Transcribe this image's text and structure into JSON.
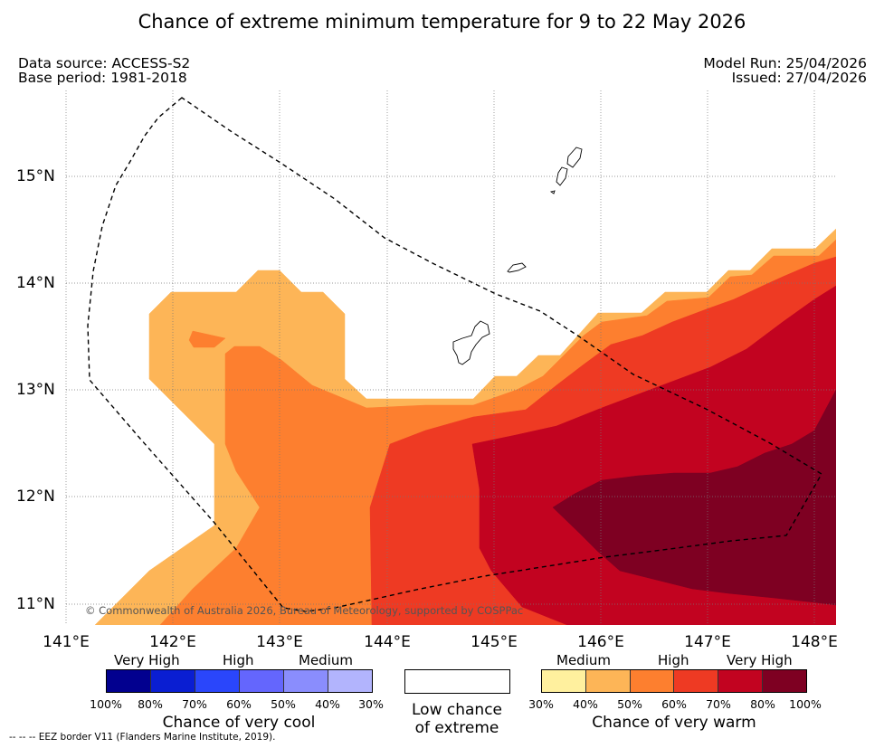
{
  "title": "Chance of extreme minimum temperature for 9 to 22 May 2026",
  "info": {
    "data_source": "Data source: ACCESS-S2",
    "base_period": "Base period: 1981-2018",
    "model_run": "Model Run: 25/04/2026",
    "issued": "Issued: 27/04/2026"
  },
  "map": {
    "lon_ticks": [
      "141°E",
      "142°E",
      "143°E",
      "144°E",
      "145°E",
      "146°E",
      "147°E",
      "148°E"
    ],
    "lat_ticks": [
      "15°N",
      "14°N",
      "13°N",
      "12°N",
      "11°N"
    ],
    "copyright": "© Commonwealth of Australia 2026, Bureau of Meteorology, supported by COSPPac",
    "bands": {
      "b40_50": {
        "label": "40–50% chance of very warm",
        "color": "#fdb557"
      },
      "b50_60": {
        "label": "50–60% chance of very warm",
        "color": "#fd7f2f"
      },
      "b60_70": {
        "label": "60–70% chance of very warm",
        "color": "#ee3a23"
      },
      "b70_80": {
        "label": "70–80% chance of very warm",
        "color": "#c20320"
      },
      "b80_100": {
        "label": "80–100% chance of very warm",
        "color": "#7e0022"
      }
    }
  },
  "legend": {
    "cool": {
      "categories": [
        "Very High",
        "High",
        "Medium"
      ],
      "colors": [
        "#02008f",
        "#0a1ed2",
        "#2a46fb",
        "#6466fd",
        "#8a8dfd",
        "#b2b4fd"
      ],
      "percents": [
        "100%",
        "80%",
        "70%",
        "60%",
        "50%",
        "40%",
        "30%"
      ],
      "title": "Chance of very cool"
    },
    "low": {
      "line1": "Low chance",
      "line2": "of extreme"
    },
    "warm": {
      "categories": [
        "Medium",
        "High",
        "Very High"
      ],
      "colors": [
        "#fff09e",
        "#fdb557",
        "#fd7f2f",
        "#ee3a23",
        "#c20320",
        "#7e0022"
      ],
      "percents": [
        "30%",
        "40%",
        "50%",
        "60%",
        "70%",
        "80%",
        "100%"
      ],
      "title": "Chance of very warm"
    }
  },
  "footnote": "--  --  -- EEZ border V11 (Flanders Marine Institute, 2019)."
}
